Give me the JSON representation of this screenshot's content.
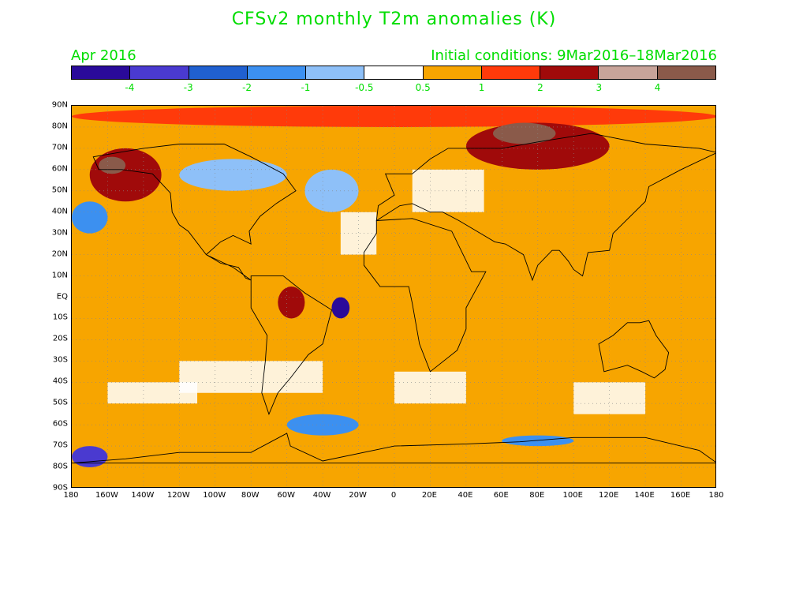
{
  "title": "CFSv2 monthly T2m anomalies (K)",
  "subtitle_left": "Apr 2016",
  "subtitle_right": "Initial conditions: 9Mar2016–18Mar2016",
  "colorbar": {
    "colors": [
      "#2a0a9a",
      "#4a3ad0",
      "#2060d0",
      "#3c90f0",
      "#8ec0f8",
      "#ffffff",
      "#f7a500",
      "#ff3a0a",
      "#a00a0a",
      "#c8a49a",
      "#8a5a4a"
    ],
    "labels": [
      "-4",
      "-3",
      "-2",
      "-1",
      "-0.5",
      "0.5",
      "1",
      "2",
      "3",
      "4"
    ]
  },
  "axes": {
    "y_ticks": [
      "90N",
      "80N",
      "70N",
      "60N",
      "50N",
      "40N",
      "30N",
      "20N",
      "10N",
      "EQ",
      "10S",
      "20S",
      "30S",
      "40S",
      "50S",
      "60S",
      "70S",
      "80S",
      "90S"
    ],
    "x_ticks": [
      "180",
      "160W",
      "140W",
      "120W",
      "100W",
      "80W",
      "60W",
      "40W",
      "20W",
      "0",
      "20E",
      "40E",
      "60E",
      "80E",
      "100E",
      "120E",
      "140E",
      "160E",
      "180"
    ]
  },
  "regions": [
    {
      "name": "arctic-band",
      "color": "#ff3a0a",
      "lon": [
        -180,
        180
      ],
      "lat": [
        80,
        90
      ]
    },
    {
      "name": "siberia-warm",
      "color": "#a00a0a",
      "lon": [
        40,
        120
      ],
      "lat": [
        60,
        82
      ]
    },
    {
      "name": "siberia-max",
      "color": "#8a5a4a",
      "lon": [
        55,
        90
      ],
      "lat": [
        72,
        82
      ]
    },
    {
      "name": "alaska-warm",
      "color": "#a00a0a",
      "lon": [
        -170,
        -130
      ],
      "lat": [
        45,
        70
      ]
    },
    {
      "name": "alaska-max",
      "color": "#8a5a4a",
      "lon": [
        -165,
        -150
      ],
      "lat": [
        58,
        66
      ]
    },
    {
      "name": "canada-cool",
      "color": "#8ec0f8",
      "lon": [
        -120,
        -60
      ],
      "lat": [
        50,
        65
      ]
    },
    {
      "name": "atlantic-cool",
      "color": "#8ec0f8",
      "lon": [
        -50,
        -20
      ],
      "lat": [
        40,
        60
      ]
    },
    {
      "name": "pacific-cool-north",
      "color": "#3c90f0",
      "lon": [
        -180,
        -160
      ],
      "lat": [
        30,
        45
      ]
    },
    {
      "name": "atlantic-south-min",
      "color": "#2a0a9a",
      "lon": [
        -35,
        -25
      ],
      "lat": [
        -10,
        0
      ]
    },
    {
      "name": "amazon-warm",
      "color": "#a00a0a",
      "lon": [
        -65,
        -50
      ],
      "lat": [
        -10,
        5
      ]
    },
    {
      "name": "southern-ocean-cool-1",
      "color": "#3c90f0",
      "lon": [
        -60,
        -20
      ],
      "lat": [
        -65,
        -55
      ]
    },
    {
      "name": "southern-ocean-cool-2",
      "color": "#3c90f0",
      "lon": [
        60,
        100
      ],
      "lat": [
        -70,
        -65
      ]
    },
    {
      "name": "antarctic-min",
      "color": "#4a3ad0",
      "lon": [
        -180,
        -160
      ],
      "lat": [
        -80,
        -70
      ]
    }
  ]
}
